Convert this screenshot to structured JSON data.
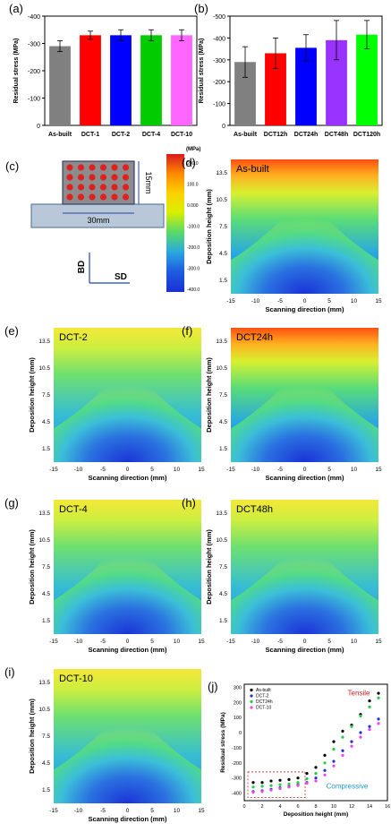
{
  "panel_labels": {
    "a": "(a)",
    "b": "(b)",
    "c": "(c)",
    "d": "(d)",
    "e": "(e)",
    "f": "(f)",
    "g": "(g)",
    "h": "(h)",
    "i": "(i)",
    "j": "(j)"
  },
  "colorbar": {
    "unit": "(MPa)",
    "ticks": [
      "200.0",
      "100.0",
      "0.000",
      "-100.0",
      "-200.0",
      "-300.0",
      "-400.0"
    ],
    "colors": [
      "#d7191c",
      "#ff8800",
      "#ffd000",
      "#d9f000",
      "#57d96a",
      "#2aa8e0",
      "#1f5de0",
      "#1a2fd6"
    ]
  },
  "schematic": {
    "width_label": "30mm",
    "height_label": "15mm",
    "bd_label": "BD",
    "sd_label": "SD",
    "dot_color": "#e02020",
    "block_color": "#8c8c8c",
    "base_color": "#b8c8d8"
  },
  "colors": {
    "as_built": "#808080",
    "dct1": "#ff0000",
    "dct2": "#0000ff",
    "dct4": "#00cc00",
    "dct10": "#ff66ff",
    "dct12h": "#ff0000",
    "dct24h": "#0000ff",
    "dct48h": "#9933ff",
    "dct120h": "#00ff00"
  },
  "chart_data": [
    {
      "panel": "a",
      "type": "bar",
      "categories": [
        "As-built",
        "DCT-1",
        "DCT-2",
        "DCT-4",
        "DCT-10"
      ],
      "values": [
        -290,
        -330,
        -330,
        -330,
        -330
      ],
      "errors": [
        20,
        15,
        20,
        20,
        20
      ],
      "ylabel": "Residual stress (MPa)",
      "yticks": [
        "-400",
        "-300",
        "-200",
        "-100",
        "0"
      ],
      "ylim": [
        -400,
        0
      ],
      "inverted_axis": true
    },
    {
      "panel": "b",
      "type": "bar",
      "categories": [
        "As-built",
        "DCT12h",
        "DCT24h",
        "DCT48h",
        "DCT120h"
      ],
      "values": [
        -290,
        -330,
        -355,
        -390,
        -415
      ],
      "errors": [
        70,
        70,
        60,
        90,
        65
      ],
      "ylabel": "Residual stress (MPa)",
      "yticks": [
        "-500",
        "-400",
        "-300",
        "-200",
        "-100",
        "0"
      ],
      "ylim": [
        -500,
        0
      ],
      "inverted_axis": true
    },
    {
      "panel": "d",
      "type": "heatmap",
      "title": "As-built",
      "xlabel": "Scanning direction (mm)",
      "ylabel": "Deposition height (mm)",
      "xticks": [
        "-15",
        "-10",
        "-5",
        "0",
        "5",
        "10",
        "15"
      ],
      "yticks": [
        "1.5",
        "4.5",
        "7.5",
        "10.5",
        "13.5"
      ],
      "xlim": [
        -15,
        15
      ],
      "ylim": [
        0,
        15
      ]
    },
    {
      "panel": "e",
      "type": "heatmap",
      "title": "DCT-2",
      "xlabel": "Scanning direction (mm)",
      "ylabel": "Deposition height (mm)",
      "xticks": [
        "-15",
        "-10",
        "-5",
        "0",
        "5",
        "10",
        "15"
      ],
      "yticks": [
        "1.5",
        "4.5",
        "7.5",
        "10.5",
        "13.5"
      ],
      "xlim": [
        -15,
        15
      ],
      "ylim": [
        0,
        15
      ]
    },
    {
      "panel": "f",
      "type": "heatmap",
      "title": "DCT24h",
      "xlabel": "Scanning direction (mm)",
      "ylabel": "Deposition height (mm)",
      "xticks": [
        "-15",
        "-10",
        "-5",
        "0",
        "5",
        "10",
        "15"
      ],
      "yticks": [
        "1.5",
        "4.5",
        "7.5",
        "10.5",
        "13.5"
      ],
      "xlim": [
        -15,
        15
      ],
      "ylim": [
        0,
        15
      ]
    },
    {
      "panel": "g",
      "type": "heatmap",
      "title": "DCT-4",
      "xlabel": "Scanning direction (mm)",
      "ylabel": "Deposition height (mm)",
      "xticks": [
        "-15",
        "-10",
        "-5",
        "0",
        "5",
        "10",
        "15"
      ],
      "yticks": [
        "1.5",
        "4.5",
        "7.5",
        "10.5",
        "13.5"
      ],
      "xlim": [
        -15,
        15
      ],
      "ylim": [
        0,
        15
      ]
    },
    {
      "panel": "h",
      "type": "heatmap",
      "title": "DCT48h",
      "xlabel": "Scanning direction (mm)",
      "ylabel": "Deposition height (mm)",
      "xticks": [
        "-15",
        "-10",
        "-5",
        "0",
        "5",
        "10",
        "15"
      ],
      "yticks": [
        "1.5",
        "4.5",
        "7.5",
        "10.5",
        "13.5"
      ],
      "xlim": [
        -15,
        15
      ],
      "ylim": [
        0,
        15
      ]
    },
    {
      "panel": "i",
      "type": "heatmap",
      "title": "DCT-10",
      "xlabel": "Scanning direction (mm)",
      "ylabel": "Deposition height (mm)",
      "xticks": [
        "-15",
        "-10",
        "-5",
        "0",
        "5",
        "10",
        "15"
      ],
      "yticks": [
        "1.5",
        "4.5",
        "7.5",
        "10.5",
        "13.5"
      ],
      "xlim": [
        -15,
        15
      ],
      "ylim": [
        0,
        15
      ]
    },
    {
      "panel": "j",
      "type": "scatter",
      "xlabel": "Deposition height (mm)",
      "ylabel": "Residual stress (MPa)",
      "xticks": [
        "0",
        "2",
        "4",
        "6",
        "8",
        "10",
        "12",
        "14",
        "16"
      ],
      "yticks": [
        "300",
        "200",
        "100",
        "0",
        "-100",
        "-200",
        "-300",
        "-400"
      ],
      "xlim": [
        0,
        16
      ],
      "ylim": [
        -450,
        320
      ],
      "annotations": {
        "tensile": "Tensile",
        "compressive": "Compressive"
      },
      "x": [
        1,
        2,
        3,
        4,
        5,
        6,
        7,
        8,
        9,
        10,
        11,
        12,
        13,
        14,
        15
      ],
      "series": [
        {
          "name": "As-built",
          "color": "#000000",
          "values": [
            -330,
            -330,
            -320,
            -315,
            -310,
            -300,
            -270,
            -230,
            -150,
            -60,
            10,
            50,
            120,
            210,
            260
          ]
        },
        {
          "name": "DCT-2",
          "color": "#2233cc",
          "values": [
            -390,
            -385,
            -375,
            -365,
            -355,
            -345,
            -330,
            -300,
            -250,
            -190,
            -120,
            -60,
            0,
            40,
            90
          ]
        },
        {
          "name": "DCT24h",
          "color": "#22cc44",
          "values": [
            -360,
            -355,
            -350,
            -345,
            -340,
            -330,
            -305,
            -270,
            -200,
            -110,
            -30,
            40,
            110,
            170,
            230
          ]
        },
        {
          "name": "DCT-10",
          "color": "#ee44ee",
          "values": [
            -395,
            -390,
            -380,
            -370,
            -360,
            -350,
            -335,
            -320,
            -280,
            -220,
            -150,
            -90,
            -30,
            20,
            60
          ]
        }
      ]
    }
  ]
}
